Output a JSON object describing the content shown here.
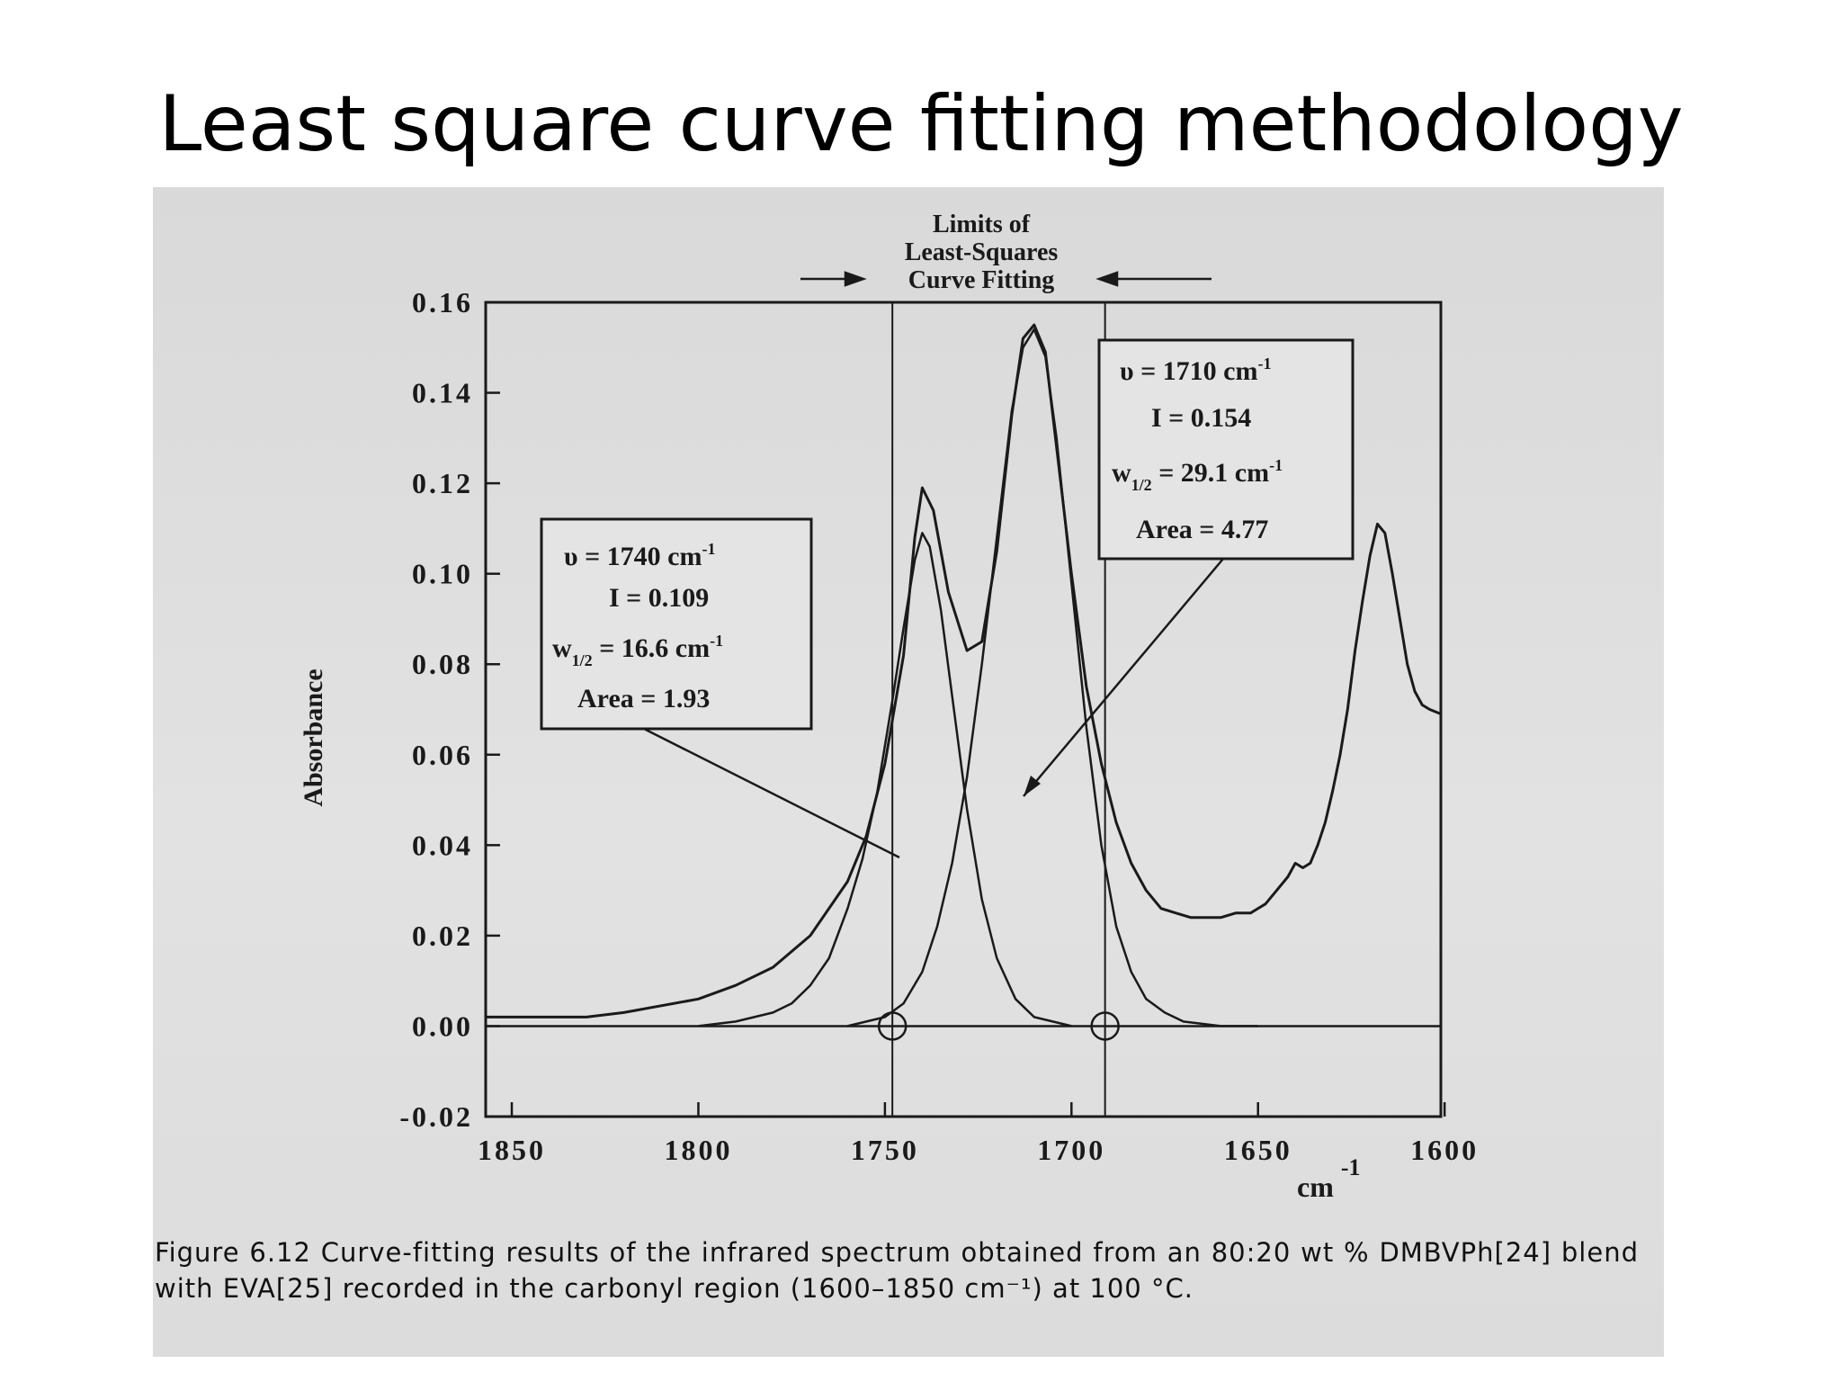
{
  "slide": {
    "title": "Least square curve fitting methodology"
  },
  "chart_data": {
    "type": "line",
    "title": "",
    "xlabel": "cm",
    "xlabel_sup": "-1",
    "ylabel": "Absorbance",
    "x_reversed": true,
    "xlim": [
      1857,
      1601
    ],
    "ylim": [
      -0.02,
      0.16
    ],
    "x_ticks": [
      1850,
      1800,
      1750,
      1700,
      1650,
      1600
    ],
    "x_tick_labels": [
      "1850",
      "1800",
      "1750",
      "1700",
      "1650",
      "1600"
    ],
    "y_ticks": [
      0.16,
      0.14,
      0.12,
      0.1,
      0.08,
      0.06,
      0.04,
      0.02,
      0.0,
      -0.02
    ],
    "y_tick_labels": [
      "0.16",
      "0.14",
      "0.12",
      "0.10",
      "0.08",
      "0.06",
      "0.04",
      "0.02",
      "0.00",
      "-0.02"
    ],
    "grid": false,
    "limit_lines_x": [
      1748,
      1691
    ],
    "crossing_markers": [
      {
        "x": 1748,
        "y": 0.0
      },
      {
        "x": 1691,
        "y": 0.0
      }
    ],
    "series": [
      {
        "role": "measured spectrum",
        "x": [
          1857,
          1830,
          1820,
          1800,
          1790,
          1780,
          1770,
          1760,
          1755,
          1750,
          1745,
          1742,
          1740,
          1737,
          1733,
          1728,
          1724,
          1720,
          1716,
          1713,
          1710,
          1707,
          1704,
          1700,
          1696,
          1692,
          1688,
          1684,
          1680,
          1676,
          1672,
          1668,
          1664,
          1660,
          1656,
          1652,
          1648,
          1645,
          1642,
          1640,
          1638,
          1636,
          1634,
          1632,
          1630,
          1628,
          1626,
          1624,
          1622,
          1620,
          1618,
          1616,
          1614,
          1612,
          1610,
          1608,
          1606,
          1604,
          1601
        ],
        "y": [
          0.002,
          0.002,
          0.003,
          0.006,
          0.009,
          0.013,
          0.02,
          0.032,
          0.042,
          0.058,
          0.082,
          0.108,
          0.119,
          0.114,
          0.096,
          0.083,
          0.085,
          0.105,
          0.135,
          0.152,
          0.155,
          0.149,
          0.128,
          0.1,
          0.075,
          0.058,
          0.045,
          0.036,
          0.03,
          0.026,
          0.025,
          0.024,
          0.024,
          0.024,
          0.025,
          0.025,
          0.027,
          0.03,
          0.033,
          0.036,
          0.035,
          0.036,
          0.04,
          0.045,
          0.052,
          0.06,
          0.07,
          0.083,
          0.094,
          0.104,
          0.111,
          0.109,
          0.1,
          0.09,
          0.08,
          0.074,
          0.071,
          0.07,
          0.069
        ]
      },
      {
        "role": "fitted band 1740",
        "x": [
          1800,
          1790,
          1780,
          1775,
          1770,
          1765,
          1760,
          1756,
          1752,
          1748,
          1745,
          1742,
          1740,
          1738,
          1735,
          1732,
          1728,
          1724,
          1720,
          1715,
          1710,
          1705,
          1700
        ],
        "y": [
          0.0,
          0.001,
          0.003,
          0.005,
          0.009,
          0.015,
          0.026,
          0.037,
          0.052,
          0.072,
          0.088,
          0.103,
          0.109,
          0.106,
          0.092,
          0.073,
          0.048,
          0.028,
          0.015,
          0.006,
          0.002,
          0.001,
          0.0
        ]
      },
      {
        "role": "fitted band 1710",
        "x": [
          1760,
          1750,
          1745,
          1740,
          1736,
          1732,
          1728,
          1724,
          1720,
          1716,
          1713,
          1710,
          1707,
          1704,
          1700,
          1696,
          1692,
          1688,
          1684,
          1680,
          1675,
          1670,
          1660,
          1650
        ],
        "y": [
          0.0,
          0.002,
          0.005,
          0.012,
          0.022,
          0.036,
          0.055,
          0.08,
          0.108,
          0.136,
          0.15,
          0.154,
          0.148,
          0.13,
          0.098,
          0.066,
          0.04,
          0.022,
          0.012,
          0.006,
          0.003,
          0.001,
          0.0,
          0.0
        ]
      }
    ],
    "annotations": [
      {
        "id": "limits",
        "lines": [
          "Limits of",
          "Least-Squares",
          "Curve Fitting"
        ]
      },
      {
        "id": "band1740",
        "nu": "υ = 1740 cm",
        "nu_sup": "-1",
        "intensity": "I = 0.109",
        "w_prefix": "w",
        "w_sub": "1/2",
        "w_value": " = 16.6 cm",
        "w_sup": "-1",
        "area": "Area = 1.93"
      },
      {
        "id": "band1710",
        "nu": "υ = 1710 cm",
        "nu_sup": "-1",
        "intensity": "I = 0.154",
        "w_prefix": "w",
        "w_sub": "1/2",
        "w_value": " = 29.1 cm",
        "w_sup": "-1",
        "area": "Area = 4.77"
      }
    ]
  },
  "caption": {
    "text": "Figure 6.12 Curve-fitting results of the infrared spectrum obtained from an 80:20 wt % DMBVPh[24] blend with EVA[25] recorded in the carbonyl region (1600–1850 cm⁻¹) at 100 °C."
  },
  "colors": {
    "ink": "#1a1a1a",
    "paper": "#dedede",
    "background": "#ffffff"
  }
}
